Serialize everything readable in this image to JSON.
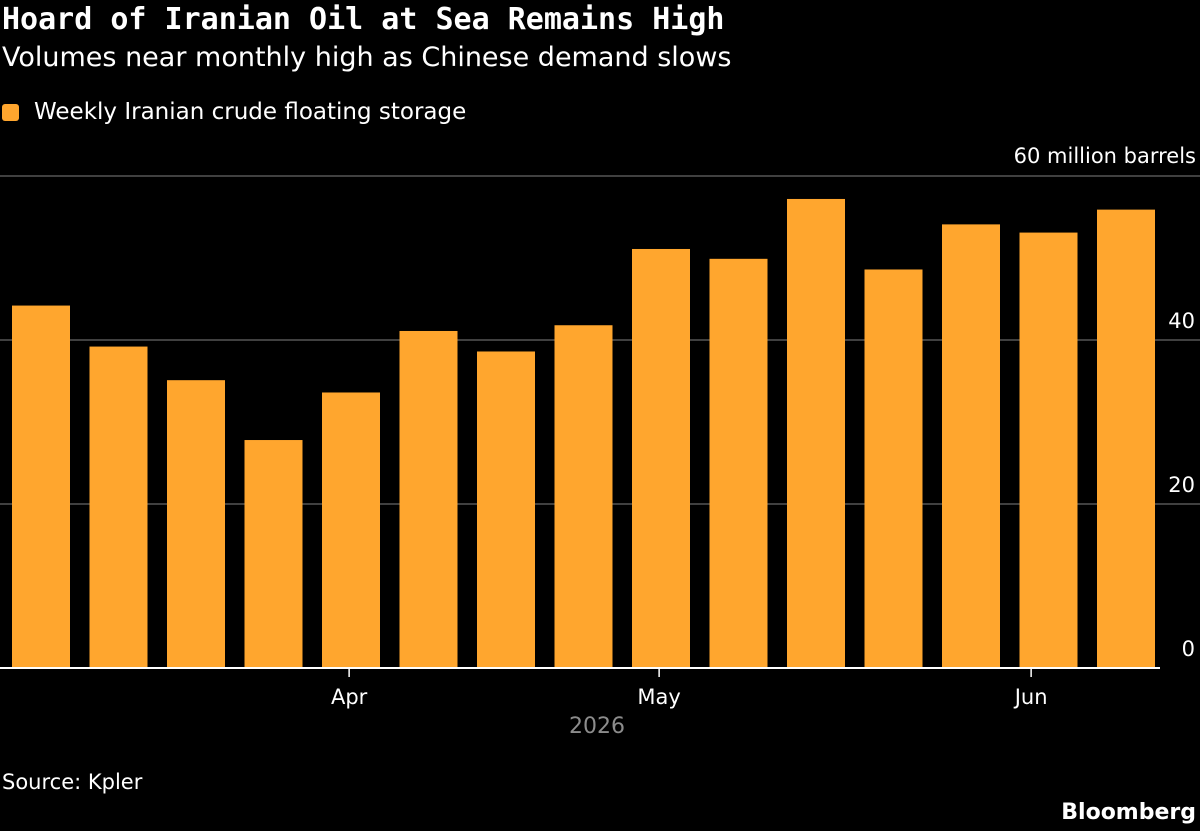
{
  "header": {
    "title": "Hoard of Iranian Oil at Sea Remains High",
    "subtitle": "Volumes near monthly high as Chinese demand slows"
  },
  "legend": {
    "label": "Weekly Iranian crude floating storage",
    "color": "#ffa62e"
  },
  "footer": {
    "source": "Source: Kpler",
    "brand": "Bloomberg"
  },
  "colors": {
    "bar": "#ffa62e",
    "grid": "#666666",
    "axis": "#ffffff",
    "background": "#000000"
  },
  "chart_data": {
    "type": "bar",
    "title": "Hoard of Iranian Oil at Sea Remains High",
    "subtitle": "Volumes near monthly high as Chinese demand slows",
    "unit_label": "60 million barrels",
    "ylim": [
      0,
      60
    ],
    "y_ticks": [
      {
        "value": 60,
        "label": "60 million barrels"
      },
      {
        "value": 40,
        "label": "40"
      },
      {
        "value": 20,
        "label": "20"
      },
      {
        "value": 0,
        "label": "0"
      }
    ],
    "grid": true,
    "y_axis_position": "right",
    "legend_position": "top-left",
    "series": [
      {
        "name": "Weekly Iranian crude floating storage",
        "values": [
          44.2,
          39.2,
          35.1,
          27.8,
          33.6,
          41.1,
          38.6,
          41.8,
          51.1,
          49.9,
          57.2,
          48.6,
          54.1,
          53.1,
          55.9
        ]
      }
    ],
    "x_ticks": [
      {
        "label": "Apr",
        "position": 4.35
      },
      {
        "label": "May",
        "position": 8.35
      },
      {
        "label": "Jun",
        "position": 13.15
      }
    ],
    "x_year_label": "2026"
  }
}
